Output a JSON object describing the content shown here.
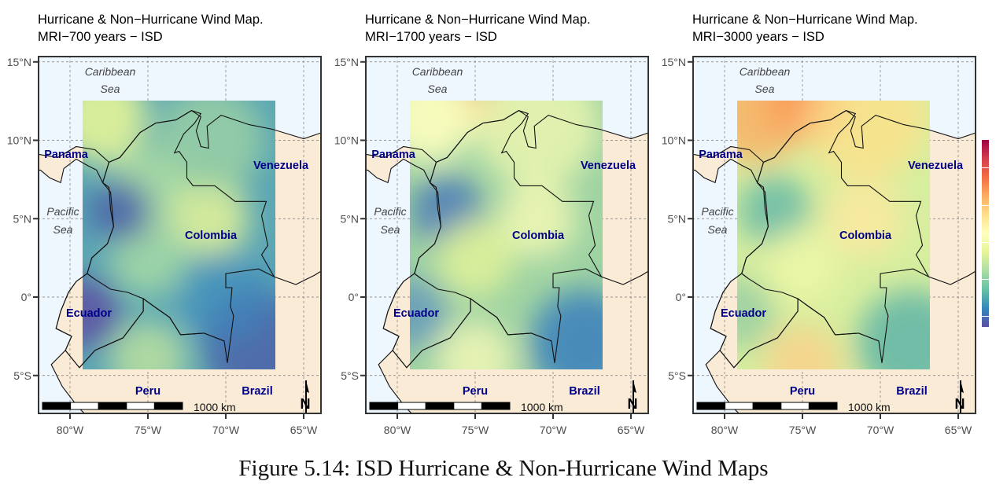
{
  "panels": [
    {
      "title_line1": "Hurricane & Non−Hurricane Wind Map.",
      "title_line2": "MRI−700 years − ISD",
      "palette": "low"
    },
    {
      "title_line1": "Hurricane & Non−Hurricane Wind Map.",
      "title_line2": "MRI−1700 years − ISD",
      "palette": "mid"
    },
    {
      "title_line1": "Hurricane & Non−Hurricane Wind Map.",
      "title_line2": "MRI−3000 years − ISD",
      "palette": "high"
    }
  ],
  "axes": {
    "lat_ticks": [
      "15°N",
      "10°N",
      "5°N",
      "0°",
      "5°S"
    ],
    "lon_ticks": [
      "80°W",
      "75°W",
      "70°W",
      "65°W"
    ]
  },
  "labels": {
    "caribbean_1": "Caribbean",
    "caribbean_2": "Sea",
    "pacific_1": "Pacific",
    "pacific_2": "Sea",
    "panama": "Panama",
    "venezuela": "Venezuela",
    "colombia": "Colombia",
    "ecuador": "Ecuador",
    "peru": "Peru",
    "brazil": "Brazil"
  },
  "scale_bar": "1000 km",
  "north_arrow": "N",
  "colors": {
    "ocean": "#eef6fe",
    "land": "#faebd7",
    "label": "#00008b",
    "colorbar": [
      "#9e0142",
      "#d53e4f",
      "#f46d43",
      "#fdae61",
      "#fee08b",
      "#ffffbf",
      "#e6f598",
      "#abdda4",
      "#66c2a5",
      "#3288bd",
      "#5e4fa2"
    ]
  },
  "caption": "Figure 5.14: ISD Hurricane & Non-Hurricane Wind Maps"
}
